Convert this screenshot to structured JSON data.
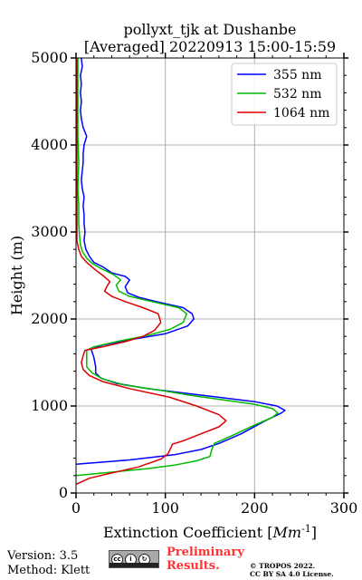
{
  "chart_data": {
    "type": "line",
    "title": "pollyxt_tjk at Dushanbe",
    "subtitle": "[Averaged] 20220913 15:00-15:59",
    "xlabel": "Extinction Coefficient [Mm^{-1}]",
    "ylabel": "Height (m)",
    "xlim": [
      0,
      300
    ],
    "ylim": [
      0,
      5000
    ],
    "xticks": [
      0,
      100,
      200,
      300
    ],
    "yticks": [
      0,
      1000,
      2000,
      3000,
      4000,
      5000
    ],
    "grid": true,
    "legend_position": "top-right",
    "series": [
      {
        "name": "355 nm",
        "color": "#0000ff",
        "points": [
          [
            0,
            330
          ],
          [
            60,
            380
          ],
          [
            110,
            440
          ],
          [
            140,
            500
          ],
          [
            160,
            570
          ],
          [
            185,
            680
          ],
          [
            210,
            820
          ],
          [
            230,
            920
          ],
          [
            234,
            950
          ],
          [
            225,
            1000
          ],
          [
            200,
            1050
          ],
          [
            160,
            1100
          ],
          [
            120,
            1150
          ],
          [
            80,
            1200
          ],
          [
            45,
            1260
          ],
          [
            28,
            1320
          ],
          [
            22,
            1380
          ],
          [
            22,
            1450
          ],
          [
            20,
            1560
          ],
          [
            17,
            1650
          ],
          [
            30,
            1700
          ],
          [
            60,
            1760
          ],
          [
            100,
            1830
          ],
          [
            125,
            1920
          ],
          [
            132,
            2000
          ],
          [
            130,
            2060
          ],
          [
            120,
            2130
          ],
          [
            90,
            2200
          ],
          [
            70,
            2250
          ],
          [
            58,
            2300
          ],
          [
            55,
            2370
          ],
          [
            60,
            2450
          ],
          [
            55,
            2490
          ],
          [
            40,
            2530
          ],
          [
            30,
            2600
          ],
          [
            20,
            2650
          ],
          [
            15,
            2720
          ],
          [
            11,
            2800
          ],
          [
            9,
            2900
          ],
          [
            10,
            3000
          ],
          [
            9,
            3100
          ],
          [
            9,
            3200
          ],
          [
            8,
            3300
          ],
          [
            9,
            3400
          ],
          [
            7,
            3500
          ],
          [
            6,
            3600
          ],
          [
            7,
            3700
          ],
          [
            8,
            3800
          ],
          [
            8,
            3900
          ],
          [
            9,
            4000
          ],
          [
            12,
            4100
          ],
          [
            8,
            4200
          ],
          [
            6,
            4300
          ],
          [
            5,
            4400
          ],
          [
            6,
            4500
          ],
          [
            5,
            4600
          ],
          [
            6,
            4700
          ],
          [
            5,
            4800
          ],
          [
            7,
            4900
          ],
          [
            6,
            5000
          ]
        ]
      },
      {
        "name": "532 nm",
        "color": "#00bb00",
        "points": [
          [
            0,
            200
          ],
          [
            40,
            240
          ],
          [
            80,
            280
          ],
          [
            110,
            320
          ],
          [
            135,
            370
          ],
          [
            150,
            420
          ],
          [
            152,
            500
          ],
          [
            155,
            570
          ],
          [
            175,
            660
          ],
          [
            200,
            780
          ],
          [
            220,
            870
          ],
          [
            226,
            920
          ],
          [
            220,
            970
          ],
          [
            200,
            1020
          ],
          [
            165,
            1070
          ],
          [
            130,
            1120
          ],
          [
            95,
            1180
          ],
          [
            55,
            1240
          ],
          [
            30,
            1310
          ],
          [
            18,
            1380
          ],
          [
            12,
            1450
          ],
          [
            12,
            1550
          ],
          [
            12,
            1640
          ],
          [
            20,
            1680
          ],
          [
            45,
            1740
          ],
          [
            80,
            1810
          ],
          [
            105,
            1880
          ],
          [
            120,
            1960
          ],
          [
            124,
            2060
          ],
          [
            115,
            2130
          ],
          [
            85,
            2200
          ],
          [
            60,
            2260
          ],
          [
            48,
            2320
          ],
          [
            45,
            2390
          ],
          [
            50,
            2450
          ],
          [
            42,
            2510
          ],
          [
            28,
            2580
          ],
          [
            18,
            2640
          ],
          [
            12,
            2700
          ],
          [
            7,
            2780
          ],
          [
            5,
            2850
          ],
          [
            4,
            2950
          ],
          [
            3,
            3100
          ],
          [
            3,
            3300
          ],
          [
            2,
            3500
          ],
          [
            3,
            3800
          ],
          [
            2,
            4100
          ],
          [
            2,
            4400
          ],
          [
            2,
            4700
          ],
          [
            2,
            5000
          ]
        ]
      },
      {
        "name": "1064 nm",
        "color": "#dd0000",
        "points": [
          [
            0,
            100
          ],
          [
            15,
            170
          ],
          [
            40,
            230
          ],
          [
            70,
            300
          ],
          [
            95,
            390
          ],
          [
            103,
            450
          ],
          [
            108,
            560
          ],
          [
            120,
            600
          ],
          [
            140,
            680
          ],
          [
            160,
            760
          ],
          [
            168,
            830
          ],
          [
            160,
            900
          ],
          [
            135,
            1000
          ],
          [
            105,
            1100
          ],
          [
            60,
            1200
          ],
          [
            30,
            1280
          ],
          [
            15,
            1350
          ],
          [
            8,
            1420
          ],
          [
            6,
            1500
          ],
          [
            8,
            1580
          ],
          [
            10,
            1640
          ],
          [
            30,
            1680
          ],
          [
            55,
            1740
          ],
          [
            75,
            1800
          ],
          [
            88,
            1870
          ],
          [
            95,
            1960
          ],
          [
            92,
            2060
          ],
          [
            75,
            2130
          ],
          [
            55,
            2200
          ],
          [
            40,
            2260
          ],
          [
            32,
            2320
          ],
          [
            35,
            2380
          ],
          [
            38,
            2430
          ],
          [
            30,
            2500
          ],
          [
            20,
            2580
          ],
          [
            12,
            2650
          ],
          [
            6,
            2720
          ],
          [
            3,
            2800
          ],
          [
            1,
            2900
          ],
          [
            1,
            3100
          ],
          [
            1,
            3400
          ],
          [
            1,
            3800
          ],
          [
            1,
            4200
          ],
          [
            1,
            4600
          ],
          [
            1,
            5000
          ]
        ]
      }
    ]
  },
  "footer": {
    "version": "Version: 3.5",
    "method": "Method: Klett",
    "license_icon": "cc-by-sa-icon",
    "preliminary_line1": "Preliminary",
    "preliminary_line2": "Results.",
    "copyright_line1": "© TROPOS 2022.",
    "copyright_line2": "CC BY SA 4.0 License."
  },
  "colors": {
    "grid": "#b0b0b0",
    "preliminary": "#ff3333"
  }
}
